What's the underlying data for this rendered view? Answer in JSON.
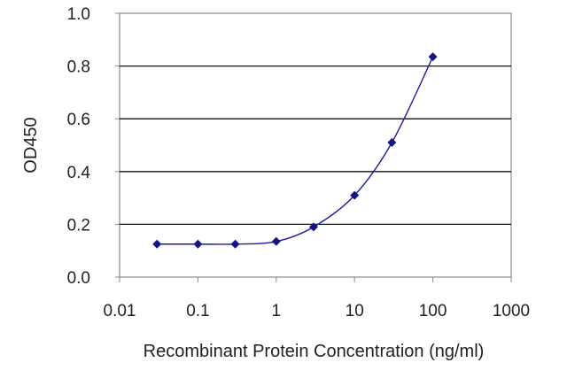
{
  "chart_data": {
    "type": "line",
    "title": "",
    "xlabel": "Recombinant Protein Concentration (ng/ml)",
    "ylabel": "OD450",
    "x_scale": "log",
    "xlim": [
      0.01,
      1000
    ],
    "ylim": [
      0.0,
      1.0
    ],
    "x_ticks": [
      0.01,
      0.1,
      1,
      10,
      100,
      1000
    ],
    "x_tick_labels": [
      "0.01",
      "0.1",
      "1",
      "10",
      "100",
      "1000"
    ],
    "y_ticks": [
      0.0,
      0.2,
      0.4,
      0.6,
      0.8,
      1.0
    ],
    "y_tick_labels": [
      "0.0",
      "0.2",
      "0.4",
      "0.6",
      "0.8",
      "1.0"
    ],
    "grid": "horizontal",
    "legend": "none",
    "series": [
      {
        "x": [
          0.03,
          0.1,
          0.3,
          1,
          3,
          10,
          30,
          100
        ],
        "y": [
          0.125,
          0.125,
          0.125,
          0.135,
          0.19,
          0.31,
          0.51,
          0.835
        ],
        "color": "#1c1c9c"
      }
    ]
  }
}
